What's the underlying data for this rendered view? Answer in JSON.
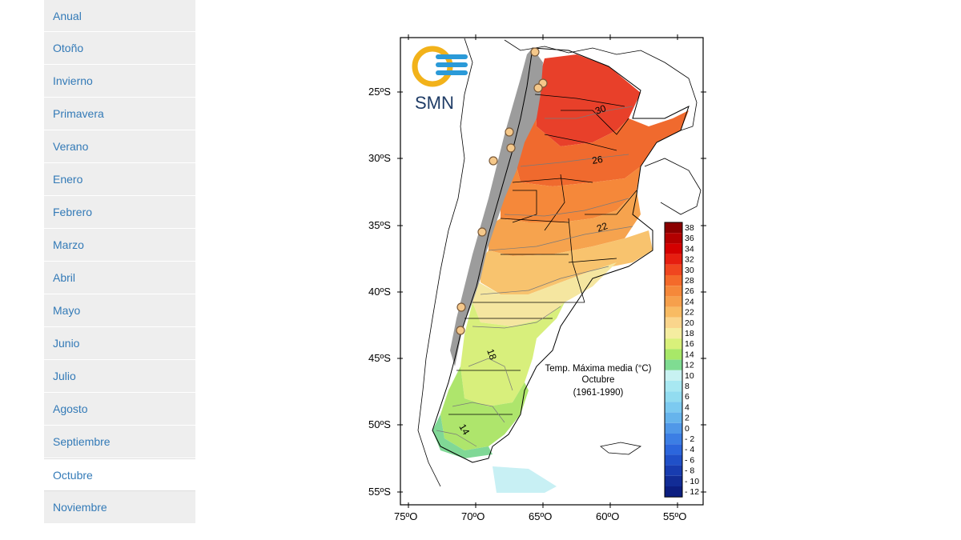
{
  "sidebar": {
    "items": [
      {
        "label": "Anual"
      },
      {
        "label": "Otoño"
      },
      {
        "label": "Invierno"
      },
      {
        "label": "Primavera"
      },
      {
        "label": "Verano"
      },
      {
        "label": "Enero"
      },
      {
        "label": "Febrero"
      },
      {
        "label": "Marzo"
      },
      {
        "label": "Abril"
      },
      {
        "label": "Mayo"
      },
      {
        "label": "Junio"
      },
      {
        "label": "Julio"
      },
      {
        "label": "Agosto"
      },
      {
        "label": "Septiembre"
      },
      {
        "label": "Octubre",
        "active": true
      },
      {
        "label": "Noviembre"
      }
    ]
  },
  "map": {
    "logo_text": "SMN",
    "title_line1": "Temp. Máxima media (°C)",
    "title_line2": "Octubre",
    "title_line3": "(1961-1990)",
    "lat_labels": [
      "25ºS",
      "30ºS",
      "35ºS",
      "40ºS",
      "45ºS",
      "50ºS",
      "55ºS"
    ],
    "lon_labels": [
      "75ºO",
      "70ºO",
      "65ºO",
      "60ºO",
      "55ºO"
    ],
    "contour_labels": [
      "30",
      "26",
      "22",
      "18",
      "14"
    ],
    "legend": {
      "values": [
        "38",
        "36",
        "34",
        "32",
        "30",
        "28",
        "26",
        "24",
        "22",
        "20",
        "18",
        "16",
        "14",
        "12",
        "10",
        "8",
        "6",
        "4",
        "2",
        "0",
        "- 2",
        "- 4",
        "- 6",
        "- 8",
        "- 10",
        "- 12"
      ],
      "colors": [
        "#8b0000",
        "#b30000",
        "#d40000",
        "#e61e10",
        "#f0461f",
        "#f46a2a",
        "#f5883a",
        "#f6a04c",
        "#f8bb63",
        "#fad58c",
        "#f5eda0",
        "#d9f07a",
        "#a8e868",
        "#7fdc92",
        "#c8f2f2",
        "#a8e8f2",
        "#92dcf0",
        "#7ccaf0",
        "#66b4ec",
        "#5098e8",
        "#3c7ee4",
        "#2c66dc",
        "#2050c8",
        "#183cb0",
        "#122c96",
        "#0c1e80"
      ]
    }
  }
}
